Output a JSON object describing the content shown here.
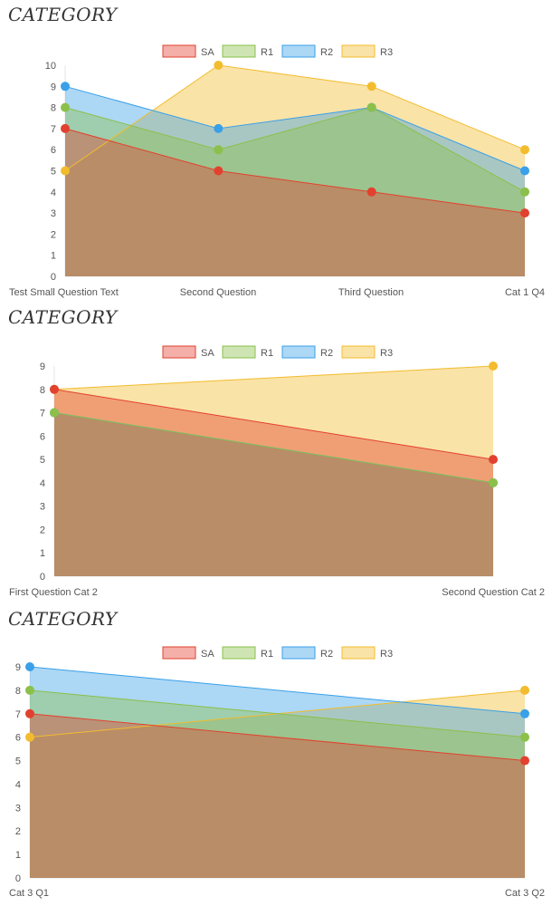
{
  "colors": {
    "SA": {
      "stroke": "#e2412f",
      "fill": "#e2412f"
    },
    "R1": {
      "stroke": "#8bc04a",
      "fill": "#8bc04a"
    },
    "R2": {
      "stroke": "#3aa0e8",
      "fill": "#3aa0e8"
    },
    "R3": {
      "stroke": "#f2bc2e",
      "fill": "#f2bc2e"
    }
  },
  "chart_data": [
    {
      "type": "area",
      "title": "CATEGORY",
      "legend": [
        "SA",
        "R1",
        "R2",
        "R3"
      ],
      "legend_position": "top-center",
      "categories": [
        "Test Small Question Text",
        "Second Question",
        "Third Question",
        "Cat 1 Q4"
      ],
      "ylim": [
        0,
        10
      ],
      "yticks": [
        "0",
        "1",
        "2",
        "3",
        "4",
        "5",
        "6",
        "7",
        "8",
        "9",
        "10"
      ],
      "series": [
        {
          "name": "SA",
          "values": [
            7,
            5,
            4,
            3
          ]
        },
        {
          "name": "R1",
          "values": [
            8,
            6,
            8,
            4
          ]
        },
        {
          "name": "R2",
          "values": [
            9,
            7,
            8,
            5
          ]
        },
        {
          "name": "R3",
          "values": [
            5,
            10,
            9,
            6
          ]
        }
      ]
    },
    {
      "type": "area",
      "title": "CATEGORY",
      "legend": [
        "SA",
        "R1",
        "R2",
        "R3"
      ],
      "legend_position": "top-center",
      "categories": [
        "First Question Cat 2",
        "Second Question Cat 2"
      ],
      "ylim": [
        0,
        9
      ],
      "yticks": [
        "0",
        "1",
        "2",
        "3",
        "4",
        "5",
        "6",
        "7",
        "8",
        "9"
      ],
      "series": [
        {
          "name": "SA",
          "values": [
            8,
            5
          ]
        },
        {
          "name": "R1",
          "values": [
            7,
            4
          ]
        },
        {
          "name": "R2",
          "values": [
            7,
            4
          ]
        },
        {
          "name": "R3",
          "values": [
            8,
            9
          ]
        }
      ]
    },
    {
      "type": "area",
      "title": "CATEGORY",
      "legend": [
        "SA",
        "R1",
        "R2",
        "R3"
      ],
      "legend_position": "top-center",
      "categories": [
        "Cat 3 Q1",
        "Cat 3 Q2"
      ],
      "ylim": [
        0,
        9
      ],
      "yticks": [
        "0",
        "1",
        "2",
        "3",
        "4",
        "5",
        "6",
        "7",
        "8",
        "9"
      ],
      "series": [
        {
          "name": "SA",
          "values": [
            7,
            5
          ]
        },
        {
          "name": "R1",
          "values": [
            8,
            6
          ]
        },
        {
          "name": "R2",
          "values": [
            9,
            7
          ]
        },
        {
          "name": "R3",
          "values": [
            6,
            8
          ]
        }
      ]
    }
  ]
}
